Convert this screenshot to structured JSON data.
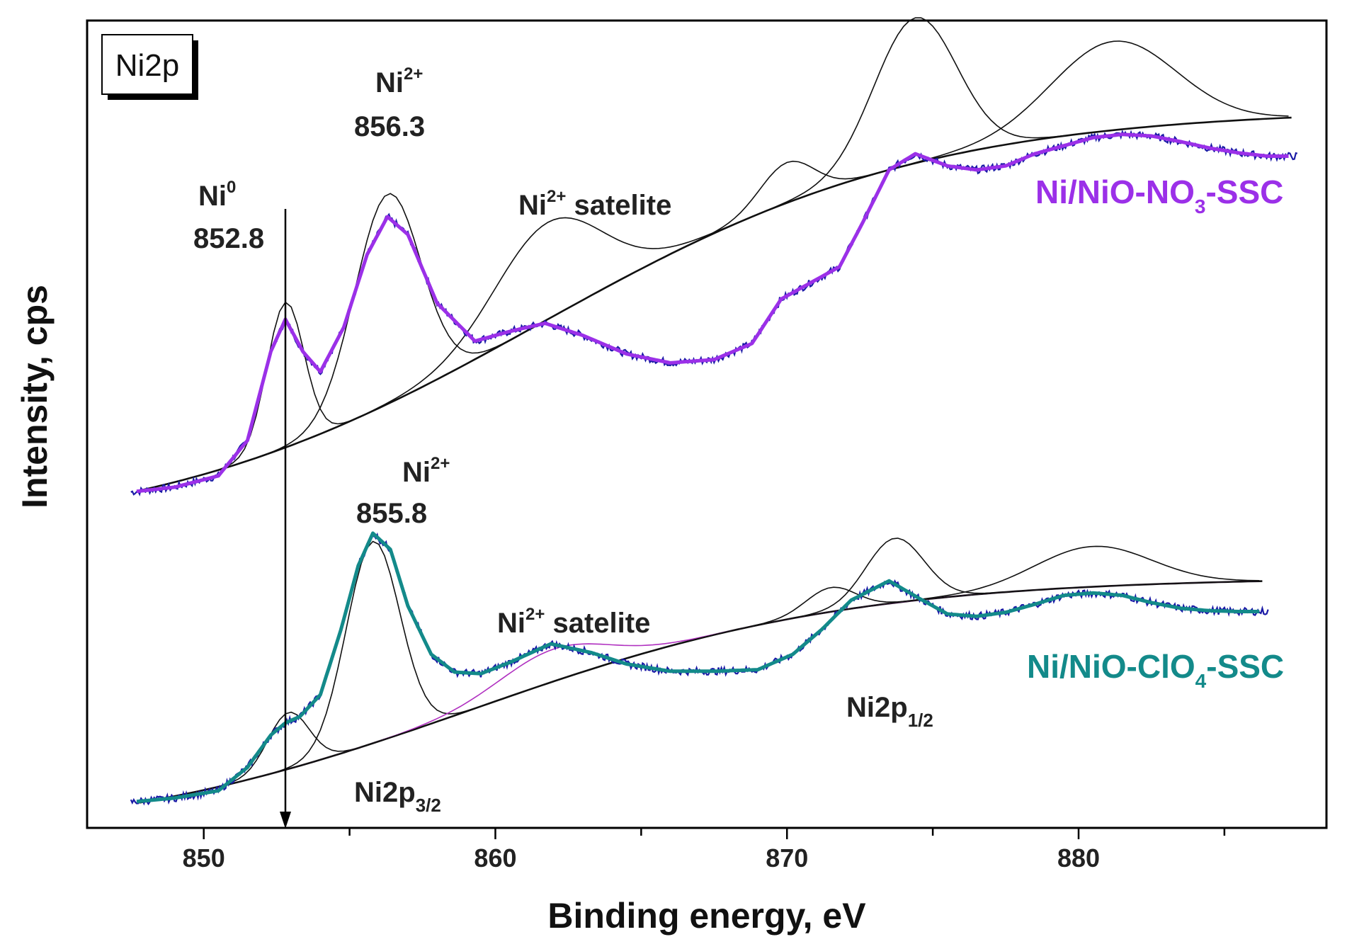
{
  "chart_data": {
    "type": "line",
    "title": "",
    "panel_label": "Ni2p",
    "xlabel": "Binding energy, eV",
    "ylabel": "Intensity, cps",
    "xlim": [
      846.0,
      888.5
    ],
    "xticks": [
      "850",
      "860",
      "870",
      "880"
    ],
    "ylim": [
      0,
      100
    ],
    "y_ticks_shown": false,
    "grid": false,
    "legend": "none",
    "x_axis_reversed": false,
    "colors": {
      "raw_data": "#1a1aa6",
      "envelope_top": "#9b30e8",
      "envelope_bottom": "#138a8a",
      "components": "#111111",
      "magenta_component": "#b030c0"
    },
    "series": [
      {
        "name": "Ni/NiO-NO3-SSC",
        "role": "measured spectrum and fit envelope",
        "x": [
          847.5,
          849.0,
          850.5,
          851.5,
          852.3,
          852.8,
          853.4,
          854.0,
          854.8,
          855.6,
          856.3,
          857.0,
          858.0,
          859.3,
          860.5,
          861.7,
          863.0,
          864.5,
          866.0,
          867.5,
          868.8,
          869.8,
          870.8,
          871.8,
          872.6,
          873.5,
          874.4,
          875.5,
          876.5,
          877.5,
          878.5,
          879.5,
          880.5,
          881.5,
          882.5,
          883.5,
          884.5,
          885.5,
          886.5,
          887.5
        ],
        "values": [
          41.6,
          42.2,
          43.6,
          48.0,
          59.0,
          63.0,
          59.0,
          56.5,
          62.0,
          71.0,
          75.7,
          73.5,
          65.0,
          60.3,
          61.5,
          62.5,
          61.0,
          58.7,
          57.6,
          58.0,
          60.0,
          65.5,
          67.5,
          69.5,
          75.0,
          81.5,
          83.5,
          82.0,
          81.5,
          82.0,
          83.5,
          84.5,
          85.5,
          85.9,
          85.7,
          85.0,
          84.2,
          83.6,
          83.2,
          83.2
        ]
      },
      {
        "name": "Ni/NiO-ClO4-SSC",
        "role": "measured spectrum and fit envelope",
        "x": [
          847.5,
          849.0,
          850.5,
          851.5,
          852.3,
          852.8,
          853.3,
          854.0,
          854.7,
          855.3,
          855.8,
          856.4,
          857.0,
          857.8,
          858.6,
          859.5,
          860.5,
          861.9,
          863.3,
          864.5,
          866.0,
          867.5,
          869.0,
          870.2,
          871.2,
          872.2,
          873.5,
          874.5,
          875.5,
          876.5,
          877.5,
          878.5,
          879.5,
          880.5,
          881.5,
          882.5,
          883.5,
          884.5,
          885.5,
          886.5
        ],
        "values": [
          3.2,
          3.7,
          4.6,
          7.5,
          11.5,
          13.0,
          13.8,
          16.5,
          24.5,
          32.5,
          36.5,
          34.5,
          27.5,
          21.5,
          19.3,
          19.1,
          20.5,
          22.8,
          21.7,
          20.3,
          19.4,
          19.4,
          19.6,
          21.5,
          24.6,
          28.2,
          30.6,
          28.5,
          26.5,
          26.2,
          26.7,
          27.7,
          28.8,
          29.1,
          28.8,
          27.9,
          27.2,
          26.9,
          26.8,
          26.8
        ]
      }
    ],
    "annotations": [
      {
        "text": "Ni",
        "sup": "0",
        "value": "852.8"
      },
      {
        "text": "Ni",
        "sup": "2+",
        "value": "856.3"
      },
      {
        "text": "Ni",
        "sup": "2+",
        "suffix": " satelite",
        "sample": "Ni/NiO-NO3-SSC"
      },
      {
        "text": "Ni",
        "sup": "2+",
        "value": "855.8"
      },
      {
        "text": "Ni",
        "sup": "2+",
        "suffix": " satelite",
        "sample": "Ni/NiO-ClO4-SSC"
      },
      {
        "text": "Ni2p",
        "sub": "3/2"
      },
      {
        "text": "Ni2p",
        "sub": "1/2"
      }
    ],
    "sample_labels": [
      {
        "base": "Ni/NiO-NO",
        "sub": "3",
        "tail": "-SSC",
        "color": "#9b30e8"
      },
      {
        "base": "Ni/NiO-ClO",
        "sub": "4",
        "tail": "-SSC",
        "color": "#138a8a"
      }
    ],
    "reference_line_x": 852.8
  }
}
